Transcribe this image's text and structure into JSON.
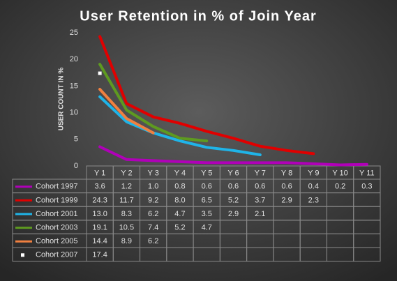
{
  "chart_data": {
    "type": "line",
    "title": "User Retention in % of Join Year",
    "y_label": "USER COUNT IN %",
    "categories": [
      "Y 1",
      "Y 2",
      "Y 3",
      "Y 4",
      "Y 5",
      "Y 6",
      "Y 7",
      "Y 8",
      "Y 9",
      "Y 10",
      "Y 11"
    ],
    "ylim": [
      0,
      25
    ],
    "yticks": [
      0,
      5,
      10,
      15,
      20,
      25
    ],
    "grid": false,
    "series": [
      {
        "name": "Cohort 1997",
        "color": "#b000b8",
        "values": [
          3.6,
          1.2,
          1.0,
          0.8,
          0.6,
          0.6,
          0.6,
          0.6,
          0.4,
          0.2,
          0.3
        ],
        "value_labels": [
          "3.6",
          "1.2",
          "1.0",
          "0.8",
          "0.6",
          "0.6",
          "0.6",
          "0.6",
          "0.4",
          "0.2",
          "0.3"
        ]
      },
      {
        "name": "Cohort 1999",
        "color": "#e00000",
        "values": [
          24.3,
          11.7,
          9.2,
          8.0,
          6.5,
          5.2,
          3.7,
          2.9,
          2.3,
          null,
          null
        ],
        "value_labels": [
          "24.3",
          "11.7",
          "9.2",
          "8.0",
          "6.5",
          "5.2",
          "3.7",
          "2.9",
          "2.3",
          null,
          null
        ]
      },
      {
        "name": "Cohort 2001",
        "color": "#1fb4e8",
        "values": [
          13.0,
          8.3,
          6.2,
          4.7,
          3.5,
          2.9,
          2.1,
          null,
          null,
          null,
          null
        ],
        "value_labels": [
          "13.0",
          "8.3",
          "6.2",
          "4.7",
          "3.5",
          "2.9",
          "2.1",
          null,
          null,
          null,
          null
        ]
      },
      {
        "name": "Cohort 2003",
        "color": "#5e9a20",
        "values": [
          19.1,
          10.5,
          7.4,
          5.2,
          4.7,
          null,
          null,
          null,
          null,
          null,
          null
        ],
        "value_labels": [
          "19.1",
          "10.5",
          "7.4",
          "5.2",
          "4.7",
          null,
          null,
          null,
          null,
          null,
          null
        ]
      },
      {
        "name": "Cohort 2005",
        "color": "#f08040",
        "values": [
          14.4,
          8.9,
          6.2,
          null,
          null,
          null,
          null,
          null,
          null,
          null,
          null
        ],
        "value_labels": [
          "14.4",
          "8.9",
          "6.2",
          null,
          null,
          null,
          null,
          null,
          null,
          null,
          null
        ]
      },
      {
        "name": "Cohort 2007",
        "color": "#ffffff",
        "values": [
          17.4,
          null,
          null,
          null,
          null,
          null,
          null,
          null,
          null,
          null,
          null
        ],
        "value_labels": [
          "17.4",
          null,
          null,
          null,
          null,
          null,
          null,
          null,
          null,
          null,
          null
        ]
      }
    ]
  }
}
